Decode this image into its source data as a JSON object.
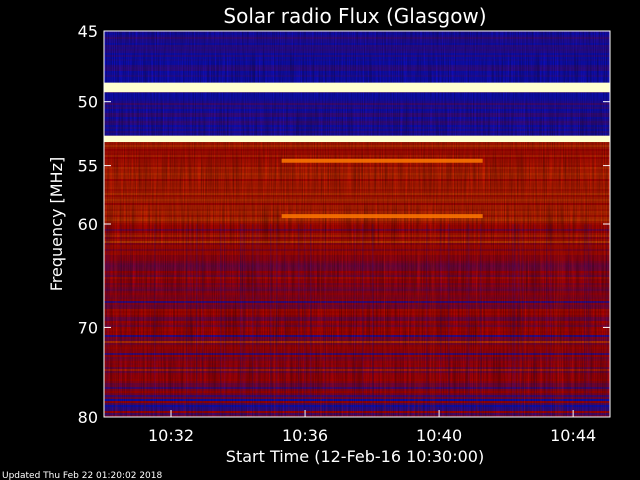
{
  "chart_data": {
    "type": "heatmap",
    "title": "Solar radio Flux (Glasgow)",
    "xlabel": "Start Time (12-Feb-16 10:30:00)",
    "ylabel": "Frequency [MHz]",
    "x_unit": "minutes after 10:30:00",
    "xlim": [
      0,
      15.1
    ],
    "ylim": [
      45,
      80
    ],
    "y_ticks": [
      {
        "value": 45,
        "label": "45"
      },
      {
        "value": 50,
        "label": "50"
      },
      {
        "value": 55,
        "label": "55"
      },
      {
        "value": 60,
        "label": "60"
      },
      {
        "value": 70,
        "label": "70"
      },
      {
        "value": 80,
        "label": "80"
      }
    ],
    "x_ticks": [
      {
        "value": 2,
        "label": "10:32"
      },
      {
        "value": 6,
        "label": "10:36"
      },
      {
        "value": 10,
        "label": "10:40"
      },
      {
        "value": 14,
        "label": "10:44"
      }
    ],
    "features": [
      {
        "name": "RFI band",
        "freq_start": 48.6,
        "freq_end": 49.3,
        "level": "saturated"
      },
      {
        "name": "RFI band",
        "freq_start": 52.6,
        "freq_end": 53.1,
        "level": "saturated"
      },
      {
        "name": "narrowband emission",
        "freq": 59.3,
        "time_start": 5.3,
        "time_end": 11.3,
        "level": "high"
      },
      {
        "name": "enhanced emission",
        "freq": 54.6,
        "time_start": 5.3,
        "time_end": 11.3,
        "level": "high"
      }
    ],
    "colors": {
      "background": "#000000",
      "low": "#1010d0",
      "mid": "#c00000",
      "high": "#ff7a00",
      "saturated": "#ffffd0"
    },
    "grid": false,
    "legend": "none"
  },
  "footer": {
    "updated": "Updated Thu Feb 22 01:20:02 2018"
  }
}
